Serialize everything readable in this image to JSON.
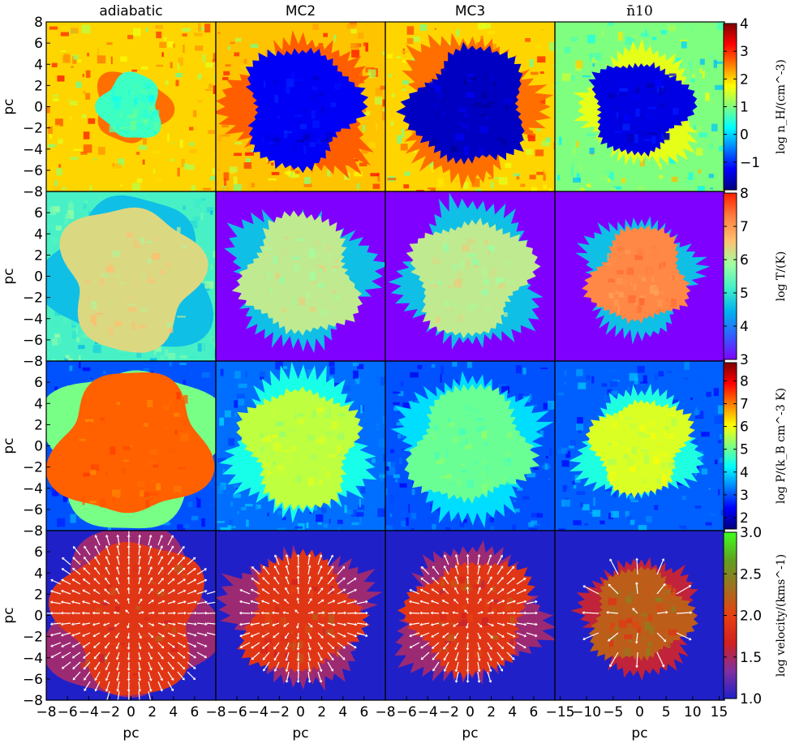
{
  "chart_data": {
    "type": "heatmap",
    "columns": [
      {
        "key": "adiabatic",
        "title": "adiabatic"
      },
      {
        "key": "mc2",
        "title": "MC2"
      },
      {
        "key": "mc3",
        "title": "MC3"
      },
      {
        "key": "n10",
        "title": "n̄10"
      }
    ],
    "rows": [
      {
        "key": "density",
        "colorbar_label": "log n_H/(cm^-3)",
        "clim": [
          -2,
          4
        ],
        "colorbar_ticks": [
          "−1",
          "0",
          "1",
          "2",
          "3",
          "4"
        ],
        "colormap": [
          "#00007f",
          "#0000ff",
          "#0080ff",
          "#00ffff",
          "#7fff7f",
          "#ffff00",
          "#ff8000",
          "#ff0000",
          "#7f0000"
        ],
        "ytick_labels": [
          "−8",
          "−6",
          "−4",
          "−2",
          "0",
          "2",
          "4",
          "6",
          "8"
        ]
      },
      {
        "key": "temperature",
        "colorbar_label": "log T/(K)",
        "clim": [
          3,
          8
        ],
        "colorbar_ticks": [
          "3",
          "4",
          "5",
          "6",
          "7",
          "8"
        ],
        "colormap": [
          "#8000ff",
          "#3060ff",
          "#00b0f0",
          "#40f0c8",
          "#a0ffa0",
          "#ffc070",
          "#ff8040",
          "#ff2000"
        ],
        "ytick_labels": [
          "−8",
          "−6",
          "−4",
          "−2",
          "0",
          "2",
          "4",
          "6"
        ]
      },
      {
        "key": "pressure",
        "colorbar_label": "log P/(k_B cm^-3 K)",
        "clim": [
          1.5,
          8.8
        ],
        "colorbar_ticks": [
          "2",
          "3",
          "4",
          "5",
          "6",
          "7",
          "8"
        ],
        "colormap": [
          "#00007f",
          "#0000ff",
          "#0080ff",
          "#00ffff",
          "#7fff7f",
          "#ffff00",
          "#ff8000",
          "#ff0000",
          "#7f0000"
        ],
        "ytick_labels": [
          "−8",
          "−6",
          "−4",
          "−2",
          "0",
          "2",
          "4",
          "6"
        ]
      },
      {
        "key": "velocity",
        "colorbar_label": "log velocity/(kms^-1)",
        "clim": [
          1.0,
          3.0
        ],
        "colorbar_ticks": [
          "1.0",
          "1.5",
          "2.0",
          "2.5",
          "3.0"
        ],
        "colormap": [
          "#2020c8",
          "#8030a0",
          "#d02020",
          "#e84010",
          "#a07020",
          "#60a020",
          "#40ff20"
        ],
        "ytick_labels": [
          "−8",
          "−6",
          "−4",
          "−2",
          "0",
          "2",
          "4",
          "6"
        ]
      }
    ],
    "xtick_labels": {
      "adiabatic": [
        "−8",
        "−6",
        "−4",
        "−2",
        "0",
        "2",
        "4",
        "6"
      ],
      "mc2": [
        "−8",
        "−6",
        "−4",
        "−2",
        "0",
        "2",
        "4",
        "6"
      ],
      "mc3": [
        "−8",
        "−6",
        "−4",
        "−2",
        "0",
        "2",
        "4",
        "6"
      ],
      "n10": [
        "−15",
        "−10",
        "−5",
        "0",
        "5",
        "10",
        "15"
      ]
    },
    "xlabel": "pc",
    "ylabel": "pc",
    "panels": {
      "adiabatic": {
        "bg_density": 2.0,
        "bubble_density": 0.6,
        "bubble_radius": 3.2,
        "bg_temperature": 5.2,
        "bubble_temperature": 6.3,
        "remnant_radius": 7.0,
        "bg_pressure": 3.0,
        "bubble_pressure": 7.2,
        "bubble_velocity": 1.9
      },
      "mc2": {
        "bg_density": 2.1,
        "bubble_density": -1.3,
        "bubble_radius": 5.5,
        "bg_temperature": 3.0,
        "bubble_temperature": 6.1,
        "bg_pressure": 3.2,
        "bubble_pressure": 5.6,
        "bubble_velocity": 1.9
      },
      "mc3": {
        "bg_density": 2.0,
        "bubble_density": -1.6,
        "bubble_radius": 5.5,
        "bg_temperature": 3.0,
        "bubble_temperature": 6.1,
        "bg_pressure": 3.0,
        "bubble_pressure": 5.0,
        "bubble_velocity": 1.9
      },
      "n10": {
        "bg_density": 1.0,
        "bubble_density": -1.4,
        "bubble_radius": 9.0,
        "bg_temperature": 3.0,
        "bubble_temperature": 7.2,
        "bg_pressure": 3.1,
        "bubble_pressure": 5.8,
        "bubble_velocity": 2.2
      },
      "velocity_background": 1.0
    }
  }
}
